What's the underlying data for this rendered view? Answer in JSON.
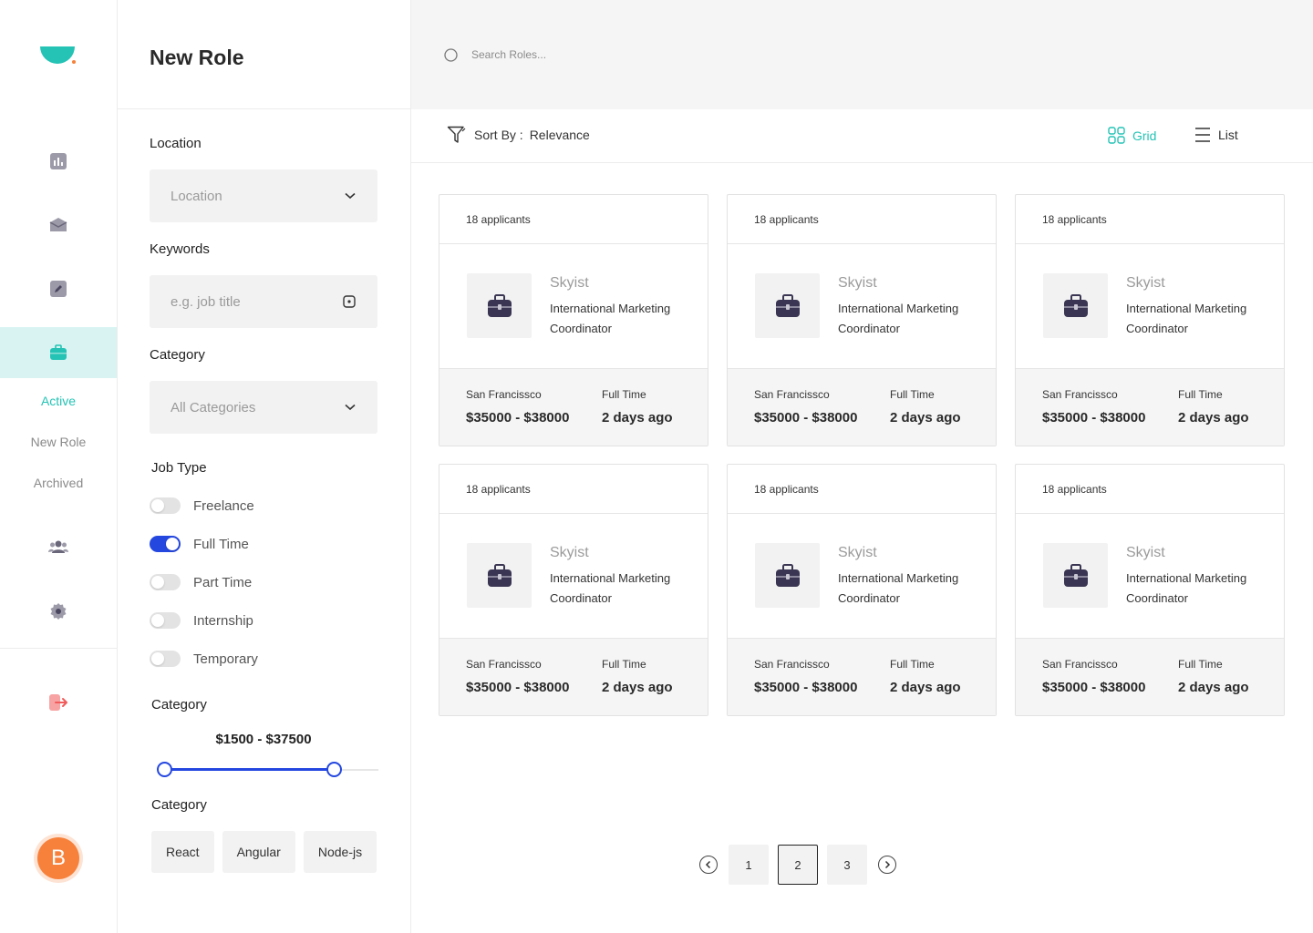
{
  "colors": {
    "accent": "#24c3b5",
    "primary_blue": "#2447e0",
    "logout_red": "#f15b5b",
    "avatar_orange": "#f7813b",
    "icon_dark": "#3a3552"
  },
  "rail": {
    "logo_icon": "half-circle-logo-icon",
    "icons": [
      "analytics-icon",
      "mail-icon",
      "edit-icon",
      "briefcase-icon",
      "team-icon",
      "settings-icon"
    ],
    "active_icon": "briefcase-icon",
    "submenu": [
      "Active",
      "New Role",
      "Archived"
    ],
    "active_submenu": "Active",
    "logout_icon": "logout-icon",
    "avatar_initial": "B"
  },
  "filters": {
    "title": "New Role",
    "location_label": "Location",
    "location_value": "Location",
    "keywords_label": "Keywords",
    "keywords_placeholder": "e.g. job title",
    "category_label": "Category",
    "category_value": "All Categories",
    "job_type_label": "Job Type",
    "job_types": [
      {
        "label": "Freelance",
        "on": false
      },
      {
        "label": "Full Time",
        "on": true
      },
      {
        "label": "Part Time",
        "on": false
      },
      {
        "label": "Internship",
        "on": false
      },
      {
        "label": "Temporary",
        "on": false
      }
    ],
    "salary_label": "Category",
    "salary_range_text": "$1500 - $37500",
    "salary_range": {
      "low_fraction": 0.03,
      "high_fraction": 0.8
    },
    "tags_label": "Category",
    "tags": [
      "React",
      "Angular",
      "Node-js"
    ]
  },
  "search": {
    "placeholder": "Search Roles..."
  },
  "toolbar": {
    "sort_label": "Sort By :",
    "sort_value": "Relevance",
    "grid_label": "Grid",
    "list_label": "List",
    "active_view": "Grid"
  },
  "cards": [
    {
      "applicants": "18 applicants",
      "company": "Skyist",
      "role": "International Marketing Coordinator",
      "location": "San Francissco",
      "salary": "$35000 - $38000",
      "type": "Full Time",
      "posted": "2 days ago"
    },
    {
      "applicants": "18 applicants",
      "company": "Skyist",
      "role": "International Marketing Coordinator",
      "location": "San Francissco",
      "salary": "$35000 - $38000",
      "type": "Full Time",
      "posted": "2 days ago"
    },
    {
      "applicants": "18 applicants",
      "company": "Skyist",
      "role": "International Marketing Coordinator",
      "location": "San Francissco",
      "salary": "$35000 - $38000",
      "type": "Full Time",
      "posted": "2 days ago"
    },
    {
      "applicants": "18 applicants",
      "company": "Skyist",
      "role": "International Marketing Coordinator",
      "location": "San Francissco",
      "salary": "$35000 - $38000",
      "type": "Full Time",
      "posted": "2 days ago"
    },
    {
      "applicants": "18 applicants",
      "company": "Skyist",
      "role": "International Marketing Coordinator",
      "location": "San Francissco",
      "salary": "$35000 - $38000",
      "type": "Full Time",
      "posted": "2 days ago"
    },
    {
      "applicants": "18 applicants",
      "company": "Skyist",
      "role": "International Marketing Coordinator",
      "location": "San Francissco",
      "salary": "$35000 - $38000",
      "type": "Full Time",
      "posted": "2 days ago"
    }
  ],
  "pagination": {
    "pages": [
      "1",
      "2",
      "3"
    ],
    "current": "2"
  }
}
